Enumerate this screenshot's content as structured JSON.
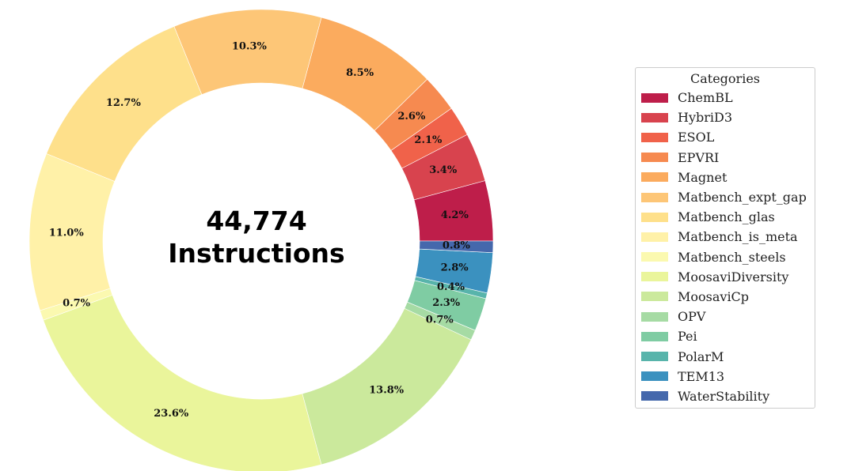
{
  "chart_data": {
    "type": "pie",
    "style": "donut",
    "center_label": [
      "44,774",
      "Instructions"
    ],
    "legend_title": "Categories",
    "legend_placement": "right",
    "slices": [
      {
        "name": "ChemBL",
        "value": 4.2,
        "label": "4.2%",
        "color": "#be1e4a"
      },
      {
        "name": "HybriD3",
        "value": 3.4,
        "label": "3.4%",
        "color": "#d8434e"
      },
      {
        "name": "ESOL",
        "value": 2.1,
        "label": "2.1%",
        "color": "#f0624a"
      },
      {
        "name": "EPVRI",
        "value": 2.6,
        "label": "2.6%",
        "color": "#f68a50"
      },
      {
        "name": "Magnet",
        "value": 8.5,
        "label": "8.5%",
        "color": "#fbab5e"
      },
      {
        "name": "Matbench_expt_gap",
        "value": 10.3,
        "label": "10.3%",
        "color": "#fdc677"
      },
      {
        "name": "Matbench_glas",
        "value": 12.7,
        "label": "12.7%",
        "color": "#fee08b"
      },
      {
        "name": "Matbench_is_meta",
        "value": 11.0,
        "label": "11.0%",
        "color": "#fff1a8"
      },
      {
        "name": "Matbench_steels",
        "value": 0.7,
        "label": "0.7%",
        "color": "#fbf9b0"
      },
      {
        "name": "MoosaviDiversity",
        "value": 23.6,
        "label": "23.6%",
        "color": "#eaf59b"
      },
      {
        "name": "MoosaviCp",
        "value": 13.8,
        "label": "13.8%",
        "color": "#cbe99c"
      },
      {
        "name": "OPV",
        "value": 0.7,
        "label": "0.7%",
        "color": "#a6dba4"
      },
      {
        "name": "Pei",
        "value": 2.3,
        "label": "2.3%",
        "color": "#7fcca3"
      },
      {
        "name": "PolarM",
        "value": 0.4,
        "label": "0.4%",
        "color": "#58b4ab"
      },
      {
        "name": "TEM13",
        "value": 2.8,
        "label": "2.8%",
        "color": "#3b91bf"
      },
      {
        "name": "WaterStability",
        "value": 0.8,
        "label": "0.8%",
        "color": "#4568ac"
      }
    ]
  }
}
